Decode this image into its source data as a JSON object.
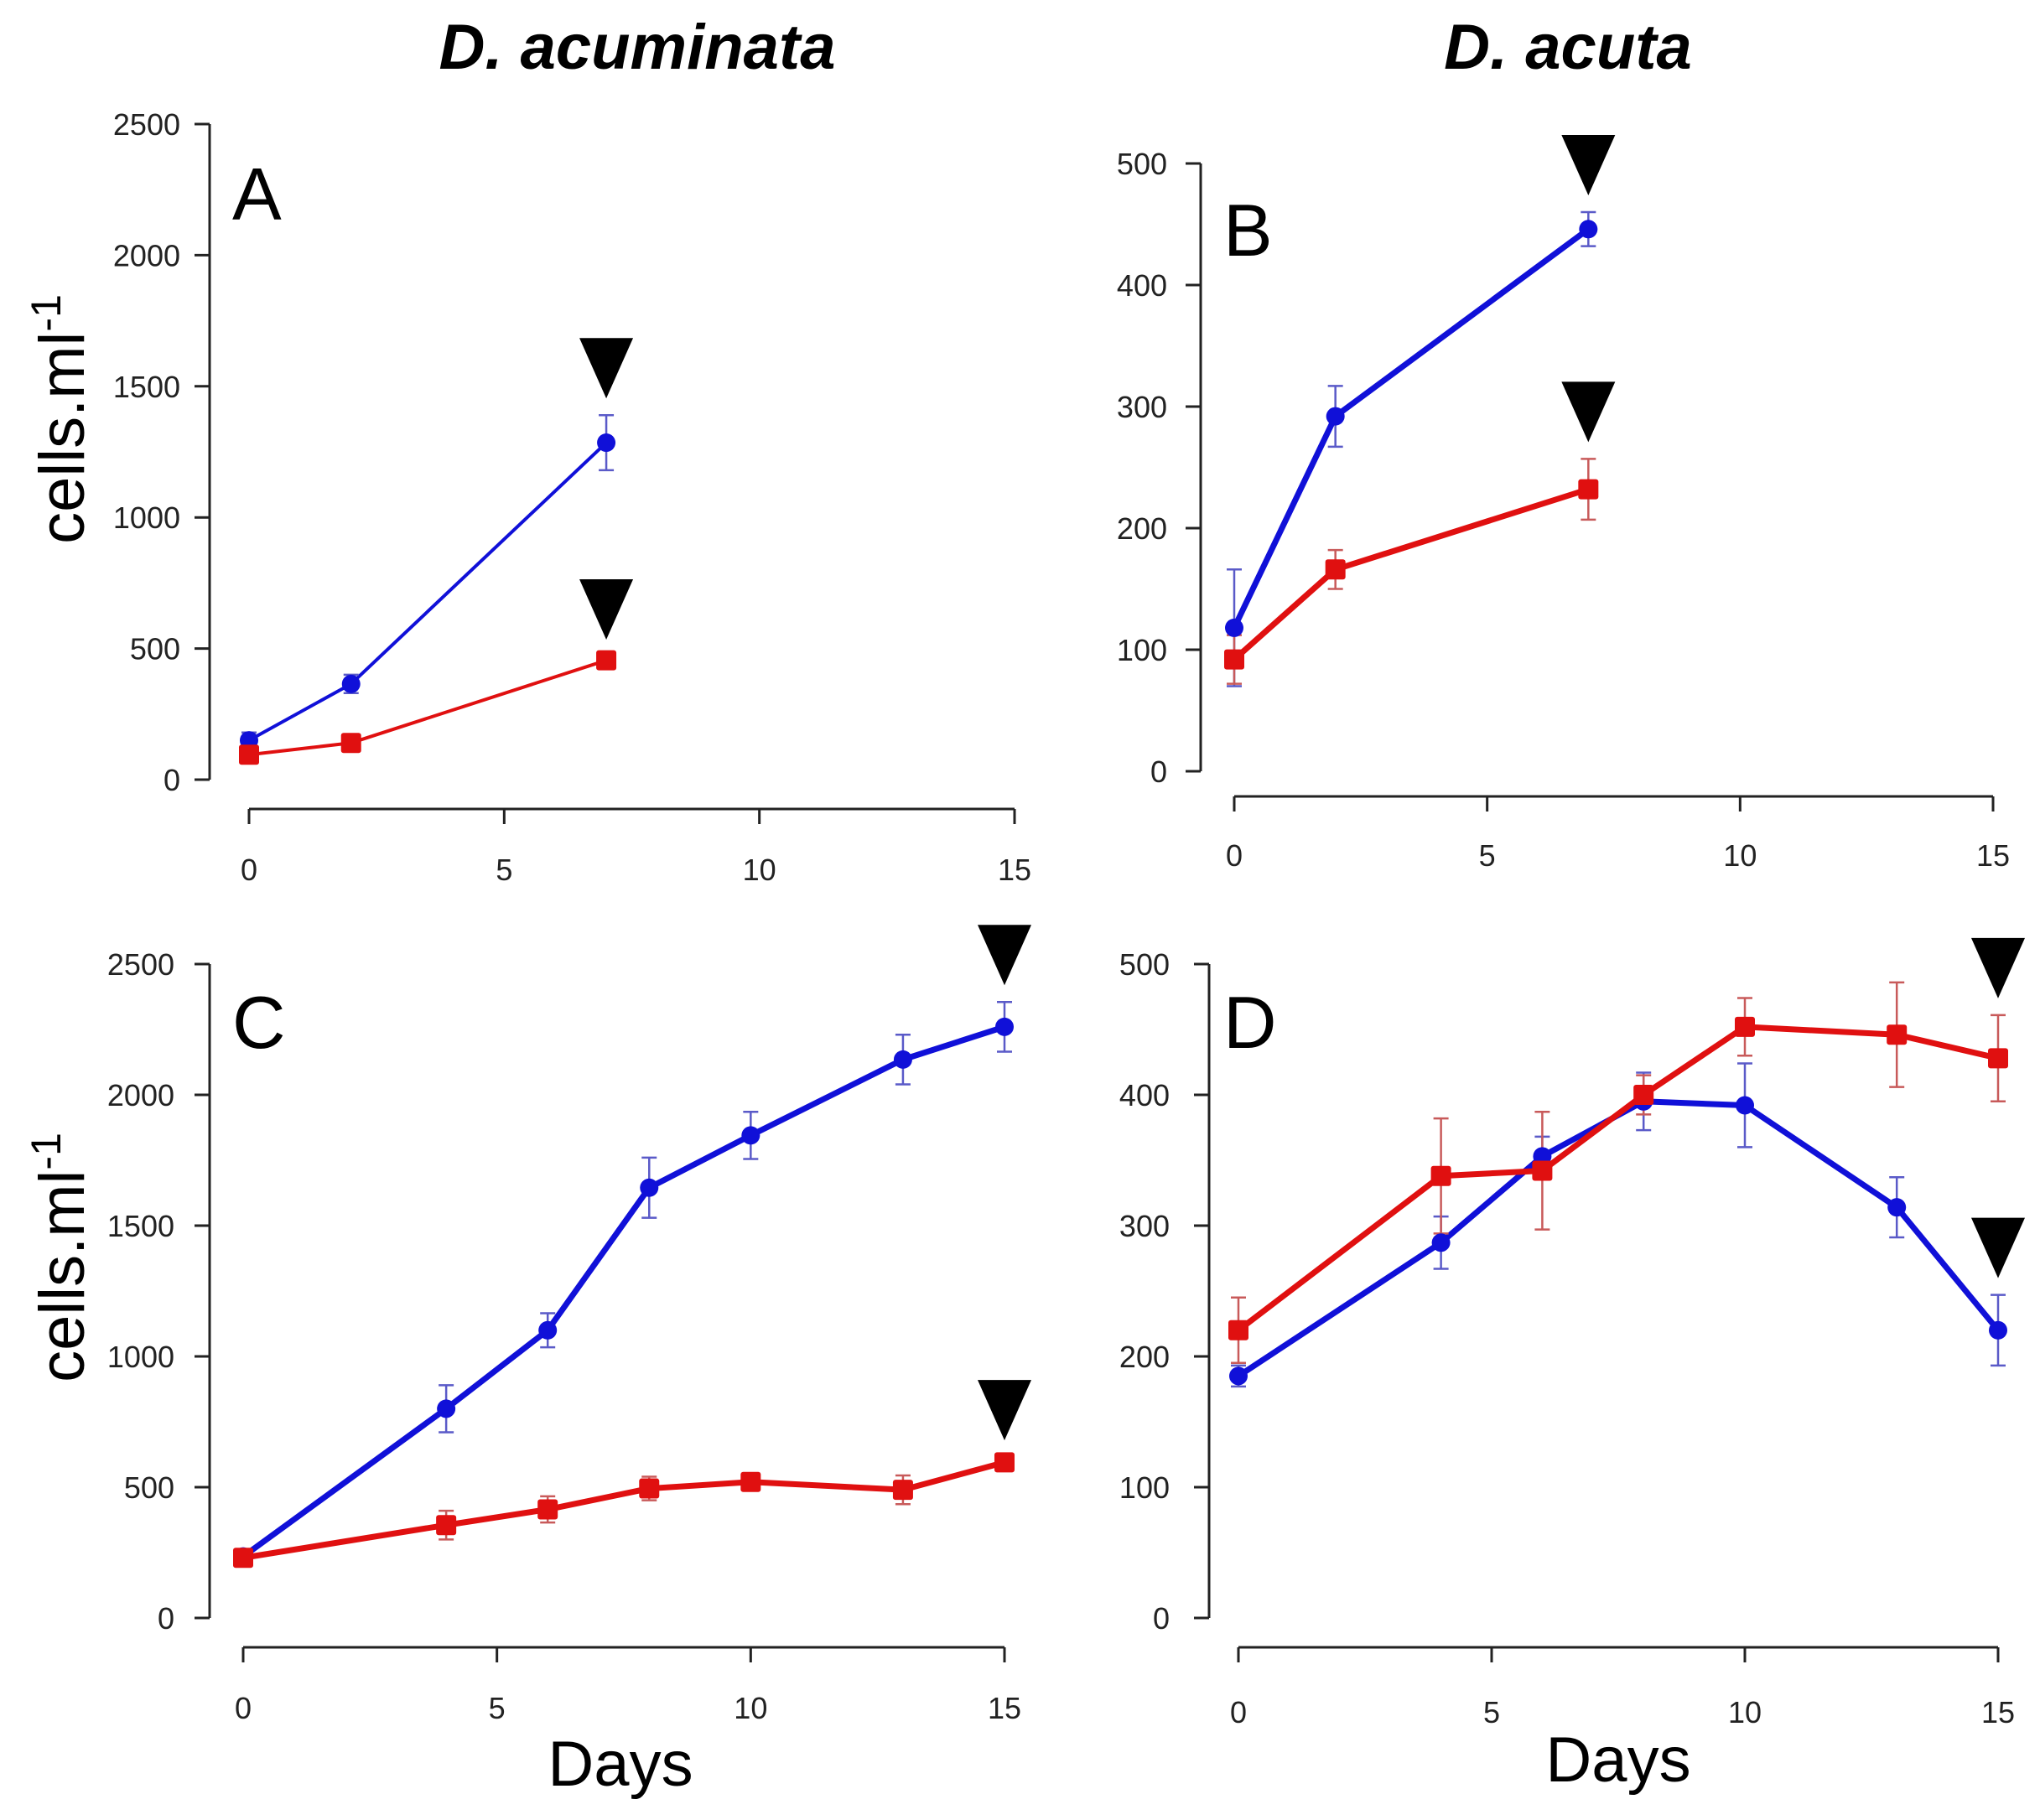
{
  "figure": {
    "col_titles": [
      "D. acuminata",
      "D. acuta"
    ],
    "ylabel_base": "cells.ml",
    "ylabel_sup": "-1",
    "xlabel": "Days",
    "colors": {
      "blue": "#1010d8",
      "red": "#e01010",
      "blue_err": "#5a5ac8",
      "red_err": "#c85a5a"
    }
  },
  "chart_data": [
    {
      "type": "line",
      "label": "A",
      "xlim": [
        0,
        15
      ],
      "ylim": [
        0,
        2500
      ],
      "xticks": [
        0,
        5,
        10,
        15
      ],
      "yticks": [
        0,
        500,
        1000,
        1500,
        2000,
        2500
      ],
      "series": [
        {
          "name": "blue",
          "x": [
            0,
            2,
            7
          ],
          "y": [
            150,
            365,
            1285
          ],
          "err": [
            30,
            35,
            105
          ]
        },
        {
          "name": "red",
          "x": [
            0,
            2,
            7
          ],
          "y": [
            95,
            140,
            455
          ],
          "err": [
            10,
            10,
            15
          ]
        }
      ],
      "markers": [
        {
          "x": 7,
          "y": 1285,
          "series": "blue"
        },
        {
          "x": 7,
          "y": 455,
          "series": "red"
        }
      ]
    },
    {
      "type": "line",
      "label": "B",
      "xlim": [
        0,
        15
      ],
      "ylim": [
        0,
        500
      ],
      "xticks": [
        0,
        5,
        10,
        15
      ],
      "yticks": [
        0,
        100,
        200,
        300,
        400,
        500
      ],
      "series": [
        {
          "name": "blue",
          "x": [
            0,
            2,
            7
          ],
          "y": [
            118,
            292,
            446
          ],
          "err": [
            48,
            25,
            14
          ]
        },
        {
          "name": "red",
          "x": [
            0,
            2,
            7
          ],
          "y": [
            92,
            166,
            232
          ],
          "err": [
            20,
            16,
            25
          ]
        }
      ],
      "markers": [
        {
          "x": 7,
          "y": 446,
          "series": "blue"
        },
        {
          "x": 7,
          "y": 232,
          "series": "red"
        }
      ]
    },
    {
      "type": "line",
      "label": "C",
      "xlim": [
        0,
        15
      ],
      "ylim": [
        0,
        2500
      ],
      "xticks": [
        0,
        5,
        10,
        15
      ],
      "yticks": [
        0,
        500,
        1000,
        1500,
        2000,
        2500
      ],
      "series": [
        {
          "name": "blue",
          "x": [
            0,
            4,
            6,
            8,
            10,
            13,
            15
          ],
          "y": [
            235,
            800,
            1100,
            1645,
            1845,
            2135,
            2260
          ],
          "err": [
            20,
            90,
            65,
            115,
            90,
            95,
            95
          ]
        },
        {
          "name": "red",
          "x": [
            0,
            4,
            6,
            8,
            10,
            13,
            15
          ],
          "y": [
            230,
            355,
            415,
            495,
            520,
            490,
            595
          ],
          "err": [
            20,
            55,
            50,
            45,
            30,
            55,
            20
          ]
        }
      ],
      "markers": [
        {
          "x": 15,
          "y": 2260,
          "series": "blue"
        },
        {
          "x": 15,
          "y": 595,
          "series": "red"
        }
      ]
    },
    {
      "type": "line",
      "label": "D",
      "xlim": [
        0,
        15
      ],
      "ylim": [
        0,
        500
      ],
      "xticks": [
        0,
        5,
        10,
        15
      ],
      "yticks": [
        0,
        100,
        200,
        300,
        400,
        500
      ],
      "series": [
        {
          "name": "blue",
          "x": [
            0,
            4,
            6,
            8,
            10,
            13,
            15
          ],
          "y": [
            185,
            287,
            353,
            395,
            392,
            314,
            220
          ],
          "err": [
            8,
            20,
            15,
            22,
            32,
            23,
            27
          ]
        },
        {
          "name": "red",
          "x": [
            0,
            4,
            6,
            8,
            10,
            13,
            15
          ],
          "y": [
            220,
            338,
            342,
            400,
            452,
            446,
            428
          ],
          "err": [
            25,
            44,
            45,
            15,
            22,
            40,
            33
          ]
        }
      ],
      "markers": [
        {
          "x": 15,
          "y": 428,
          "series": "red"
        },
        {
          "x": 15,
          "y": 220,
          "series": "blue"
        }
      ]
    }
  ]
}
